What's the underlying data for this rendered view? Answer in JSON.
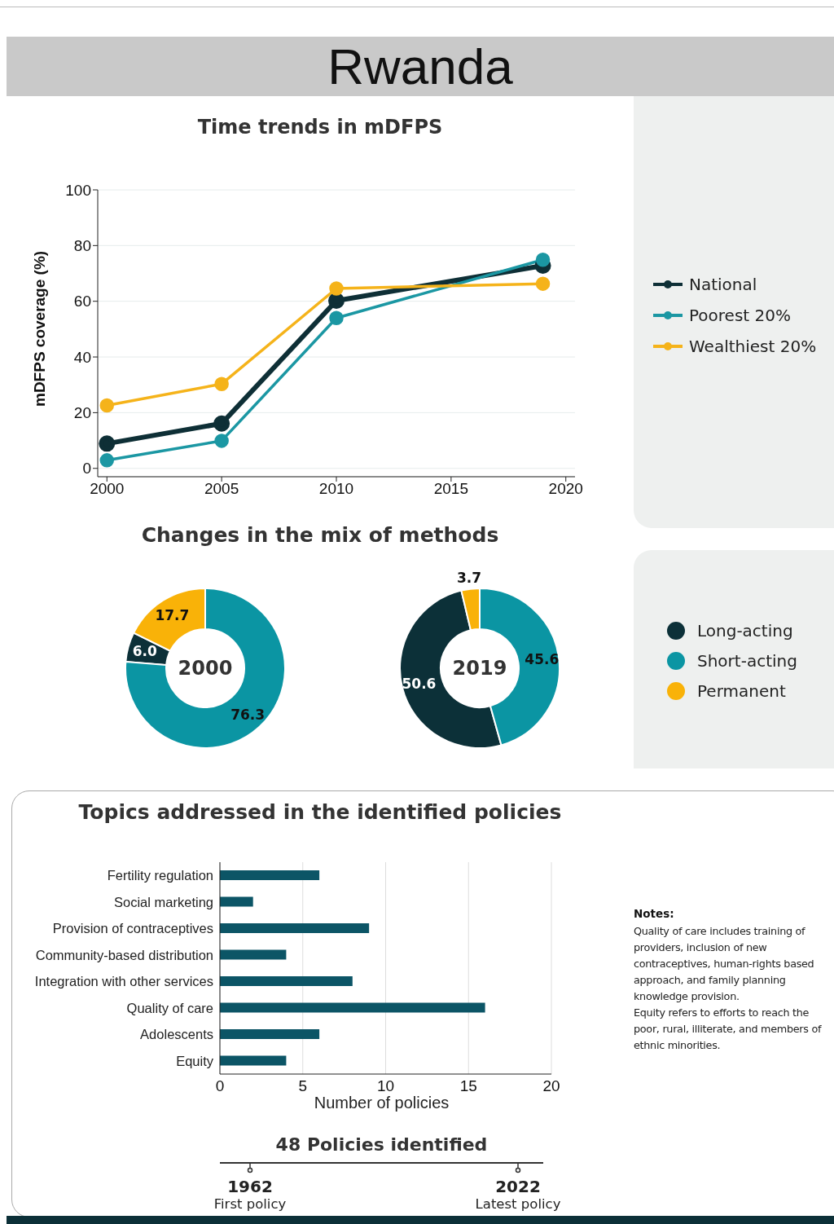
{
  "chart_data": [
    {
      "type": "line",
      "title": "Rwanda",
      "subtitle": "Time trends in mDFPS",
      "ylabel": "mDFPS coverage (%)",
      "x": [
        2000,
        2005,
        2010,
        2019
      ],
      "xlim": [
        1999.6,
        2020.4
      ],
      "xticks": [
        2000,
        2005,
        2010,
        2015,
        2020
      ],
      "ylim": [
        -3,
        100
      ],
      "yticks": [
        0,
        20,
        40,
        60,
        80,
        100
      ],
      "grid": "y",
      "marker": "circle",
      "legend": "right",
      "series": [
        {
          "name": "National",
          "color": "#0e2f36",
          "values": [
            8.9,
            16.1,
            60.2,
            72.8
          ]
        },
        {
          "name": "Poorest 20%",
          "color": "#1b97a3",
          "values": [
            2.9,
            9.9,
            54.0,
            74.9
          ]
        },
        {
          "name": "Wealthiest 20%",
          "color": "#f5b31a",
          "values": [
            22.6,
            30.3,
            64.6,
            66.3
          ]
        }
      ]
    },
    {
      "type": "donut",
      "title": "Changes in the mix of methods",
      "annotations": [
        "2000"
      ],
      "categories": [
        "Long-acting",
        "Short-acting",
        "Permanent"
      ],
      "values": [
        6.0,
        76.3,
        17.7
      ],
      "value_labels": [
        "6.0",
        "76.3",
        "17.7"
      ],
      "colors": [
        "#0c3038",
        "#0b95a3",
        "#f9b208"
      ],
      "legend": "right"
    },
    {
      "type": "donut",
      "annotations": [
        "2019"
      ],
      "categories": [
        null,
        null,
        null
      ],
      "values": [
        50.6,
        45.6,
        3.7
      ],
      "value_labels": [
        "50.6",
        "45.6",
        "3.7"
      ],
      "colors": [
        "#0c3038",
        "#0b95a3",
        "#f9b208"
      ]
    },
    {
      "type": "bar",
      "orientation": "horizontal",
      "title": "Topics addressed in the identified policies",
      "xlabel": "Number of policies",
      "categories": [
        "Fertility regulation",
        "Social marketing",
        "Provision of contraceptives",
        "Community-based distribution",
        "Integration with other services",
        "Quality of care",
        "Adolescents",
        "Equity"
      ],
      "values": [
        6,
        2,
        9,
        4,
        8,
        16,
        6,
        4
      ],
      "color": "#0c5566",
      "xlim": [
        0,
        20
      ],
      "xticks": [
        0,
        5,
        10,
        15,
        20
      ],
      "grid": "x",
      "annotations": [
        "Notes:",
        "Quality of care includes training of providers, inclusion of new contraceptives, human-rights based approach, and family planning knowledge provision.",
        "Equity refers to efforts to reach the poor, rural, illiterate, and members of ethnic minorities.",
        "48 Policies identified",
        "1962",
        "First policy",
        "2022",
        "Latest policy"
      ]
    }
  ]
}
